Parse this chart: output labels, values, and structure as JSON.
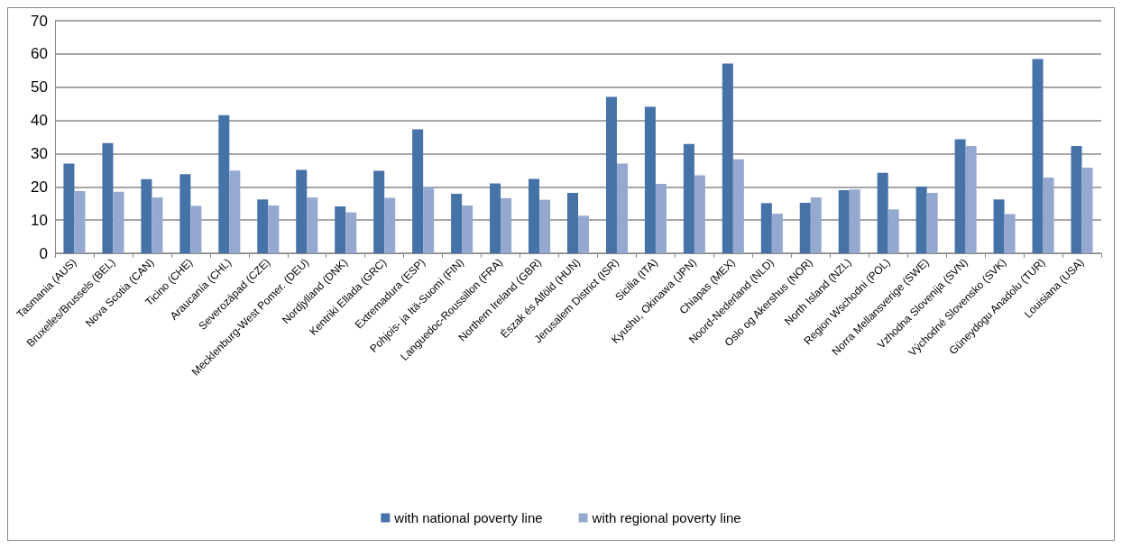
{
  "chart_data": {
    "type": "bar",
    "categories": [
      "Tasmania (AUS)",
      "Bruxelles/Brussels (BEL)",
      "Nova Scotia (CAN)",
      "Ticino (CHE)",
      "Araucanía (CHL)",
      "Severozápad (CZE)",
      "Mecklenburg-West Pomer. (DEU)",
      "Nordjylland (DNK)",
      "Kentriki Ellada (GRC)",
      "Extremadura (ESP)",
      "Pohjois- ja Itä-Suomi (FIN)",
      "Languedoc-Roussillon (FRA)",
      "Northern Ireland (GBR)",
      "Észak és Alföld (HUN)",
      "Jerusalem District (ISR)",
      "Sicilia (ITA)",
      "Kyushu, Okinawa (JPN)",
      "Chiapas (MEX)",
      "Noord-Nederland (NLD)",
      "Oslo og Akershus (NOR)",
      "North Island (NZL)",
      "Region Wschodni (POL)",
      "Norra Mellansverige (SWE)",
      "Vzhodna Slovenija (SVN)",
      "Východné Slovensko (SVK)",
      "Güneydogu Anadolu (TUR)",
      "Louisiana (USA)"
    ],
    "series": [
      {
        "name": "with national poverty line",
        "color": "#4572a7",
        "values": [
          27,
          33.2,
          22.3,
          23.8,
          41.6,
          16.2,
          25.1,
          14.1,
          24.8,
          37.3,
          17.9,
          21,
          22.4,
          18.2,
          47.1,
          44.1,
          32.9,
          57.1,
          15.1,
          15.2,
          19,
          24.2,
          20.1,
          34.3,
          16.2,
          58.5,
          32.3
        ]
      },
      {
        "name": "with regional poverty line",
        "color": "#95a9d0",
        "values": [
          18.7,
          18.5,
          16.8,
          14.3,
          24.9,
          14.4,
          16.8,
          12.3,
          16.7,
          20,
          14.4,
          16.6,
          16.1,
          11.3,
          27,
          20.9,
          23.5,
          28.3,
          11.9,
          16.8,
          19.2,
          13.2,
          18.2,
          32.3,
          11.8,
          22.8,
          25.8
        ]
      }
    ],
    "ylim": [
      0,
      70
    ],
    "yticks": [
      0,
      10,
      20,
      30,
      40,
      50,
      60,
      70
    ],
    "grid": "y",
    "legend": "bottom"
  }
}
